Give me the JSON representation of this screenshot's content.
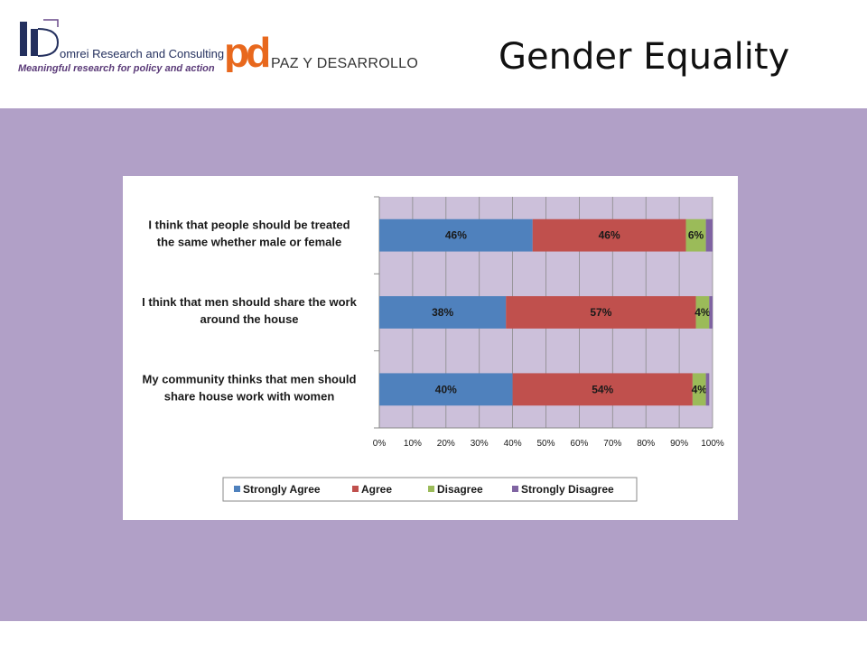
{
  "header": {
    "domrei_logo": {
      "name": "omrei Research and Consulting",
      "tagline": "Meaningful research for policy and action"
    },
    "pd_logo": {
      "mark": "pd",
      "name": "PAZ Y DESARROLLO"
    },
    "title": "Gender Equality"
  },
  "colors": {
    "background_band": "#b1a0c7",
    "plot_area": "#ccc0da",
    "strongly_agree": "#4f81bd",
    "agree": "#c0504d",
    "disagree": "#9bbb59",
    "strongly_disagree": "#8064a2"
  },
  "chart_data": {
    "type": "bar",
    "orientation": "horizontal",
    "stacked": true,
    "categories": [
      [
        "I think that people should be treated",
        "the same whether male or female"
      ],
      [
        "I think that men should share the work",
        "around the house"
      ],
      [
        "My community thinks that men should",
        "share house work with women"
      ]
    ],
    "series": [
      {
        "name": "Strongly Agree",
        "color": "#4f81bd",
        "values": [
          46,
          38,
          40
        ],
        "labels": [
          "46%",
          "38%",
          "40%"
        ]
      },
      {
        "name": "Agree",
        "color": "#c0504d",
        "values": [
          46,
          57,
          54
        ],
        "labels": [
          "46%",
          "57%",
          "54%"
        ]
      },
      {
        "name": "Disagree",
        "color": "#9bbb59",
        "values": [
          6,
          4,
          4
        ],
        "labels": [
          "6%",
          "4%",
          "4%"
        ]
      },
      {
        "name": "Strongly Disagree",
        "color": "#8064a2",
        "values": [
          3,
          1,
          1
        ],
        "labels": [
          "",
          "",
          ""
        ]
      }
    ],
    "xlim": [
      0,
      100
    ],
    "x_ticks": [
      "0%",
      "10%",
      "20%",
      "30%",
      "40%",
      "50%",
      "60%",
      "70%",
      "80%",
      "90%",
      "100%"
    ],
    "grid": true,
    "legend_position": "bottom"
  }
}
